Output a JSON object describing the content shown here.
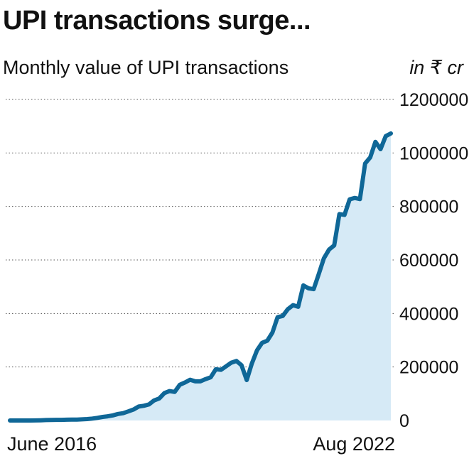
{
  "chart_data": {
    "type": "area",
    "title": "UPI transactions surge...",
    "subtitle": "Monthly value of UPI transactions",
    "unit": "in ₹ cr",
    "x_start_label": "June 2016",
    "x_end_label": "Aug 2022",
    "ylim": [
      0,
      1200000
    ],
    "yticks": [
      "0",
      "200000",
      "400000",
      "600000",
      "800000",
      "1000000",
      "1200000"
    ],
    "grid": true,
    "series": [
      {
        "color": "#0f6797",
        "fill": "#d6eaf6",
        "x": [
          "2016-06",
          "2016-07",
          "2016-08",
          "2016-09",
          "2016-10",
          "2016-11",
          "2016-12",
          "2017-01",
          "2017-02",
          "2017-03",
          "2017-04",
          "2017-05",
          "2017-06",
          "2017-07",
          "2017-08",
          "2017-09",
          "2017-10",
          "2017-11",
          "2017-12",
          "2018-01",
          "2018-02",
          "2018-03",
          "2018-04",
          "2018-05",
          "2018-06",
          "2018-07",
          "2018-08",
          "2018-09",
          "2018-10",
          "2018-11",
          "2018-12",
          "2019-01",
          "2019-02",
          "2019-03",
          "2019-04",
          "2019-05",
          "2019-06",
          "2019-07",
          "2019-08",
          "2019-09",
          "2019-10",
          "2019-11",
          "2019-12",
          "2020-01",
          "2020-02",
          "2020-03",
          "2020-04",
          "2020-05",
          "2020-06",
          "2020-07",
          "2020-08",
          "2020-09",
          "2020-10",
          "2020-11",
          "2020-12",
          "2021-01",
          "2021-02",
          "2021-03",
          "2021-04",
          "2021-05",
          "2021-06",
          "2021-07",
          "2021-08",
          "2021-09",
          "2021-10",
          "2021-11",
          "2021-12",
          "2022-01",
          "2022-02",
          "2022-03",
          "2022-04",
          "2022-05",
          "2022-06",
          "2022-07",
          "2022-08"
        ],
        "values": [
          0,
          0,
          0,
          0,
          100,
          200,
          700,
          1700,
          2000,
          2400,
          2300,
          2800,
          3100,
          3400,
          4200,
          5300,
          7100,
          9700,
          13200,
          15600,
          19200,
          24300,
          27300,
          34000,
          40800,
          52000,
          55000,
          60000,
          74900,
          82200,
          102600,
          109900,
          106700,
          133500,
          142000,
          152400,
          146400,
          146200,
          154500,
          161500,
          191400,
          189200,
          202500,
          216200,
          222500,
          206500,
          151100,
          213000,
          262300,
          290500,
          298300,
          329000,
          386100,
          390900,
          416200,
          431200,
          425100,
          505000,
          494000,
          491000,
          547400,
          606300,
          639100,
          654400,
          771400,
          768400,
          826800,
          831900,
          827500,
          960600,
          983300,
          1041500,
          1014100,
          1062700,
          1072800
        ]
      }
    ]
  }
}
